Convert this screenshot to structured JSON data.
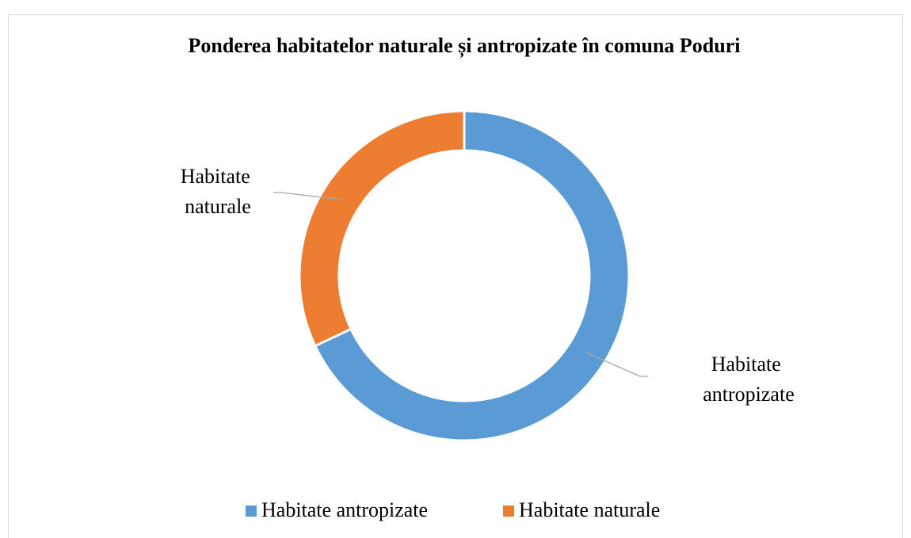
{
  "chart_data": {
    "type": "donut",
    "title": "Ponderea habitatelor naturale și antropizate în comuna Poduri",
    "categories": [
      "Habitate antropizate",
      "Habitate naturale"
    ],
    "values": [
      68,
      32
    ],
    "colors": [
      "#5b9bd5",
      "#ed7d31"
    ],
    "legend": "bottom"
  }
}
